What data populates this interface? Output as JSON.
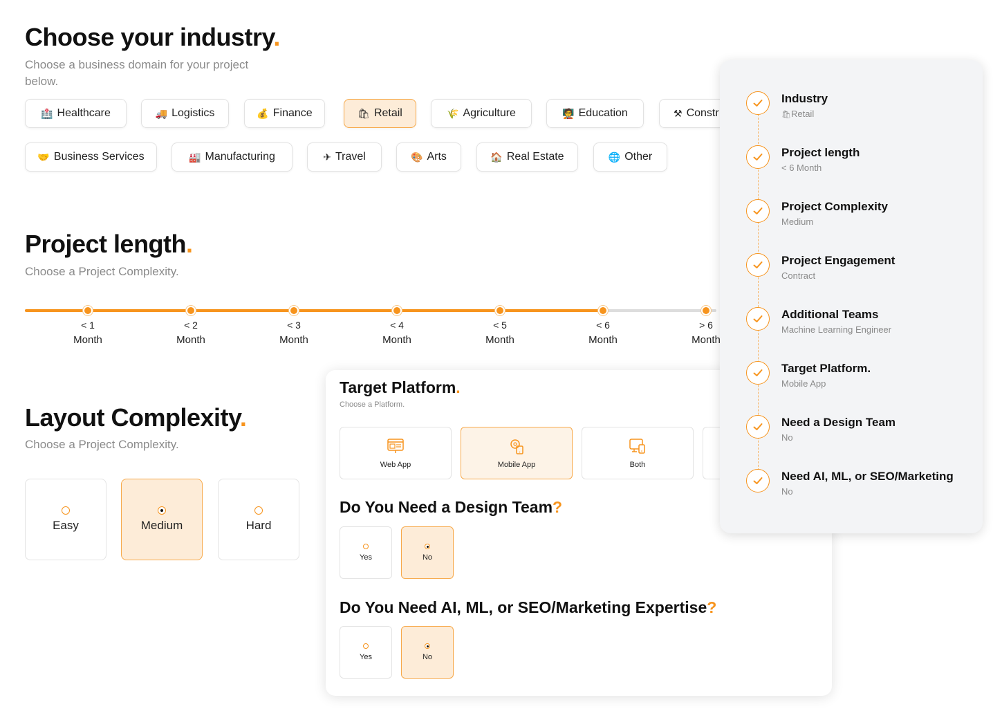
{
  "industry": {
    "title": "Choose your industry",
    "subtitle_line1": "Choose a business domain for your project",
    "subtitle_line2": "below.",
    "chips": [
      {
        "label": "Healthcare",
        "icon": "🏥",
        "icon_name": "hospital-icon"
      },
      {
        "label": "Logistics",
        "icon": "🚚",
        "icon_name": "truck-icon"
      },
      {
        "label": "Finance",
        "icon": "💰",
        "icon_name": "money-bag-icon"
      },
      {
        "label": "Retail",
        "icon": "🛍",
        "icon_name": "shopping-bags-icon",
        "selected": true
      },
      {
        "label": "Agriculture",
        "icon": "🌾",
        "icon_name": "wheat-icon"
      },
      {
        "label": "Education",
        "icon": "🧑‍🏫",
        "icon_name": "teacher-icon"
      },
      {
        "label": "Constr",
        "icon": "⚒",
        "icon_name": "tools-icon"
      },
      {
        "label": "Business Services",
        "icon": "🤝",
        "icon_name": "handshake-icon"
      },
      {
        "label": "Manufacturing",
        "icon": "🏭",
        "icon_name": "factory-icon"
      },
      {
        "label": "Travel",
        "icon": "✈",
        "icon_name": "airplane-icon"
      },
      {
        "label": "Arts",
        "icon": "🎨",
        "icon_name": "palette-icon"
      },
      {
        "label": "Real Estate",
        "icon": "🏠",
        "icon_name": "house-icon"
      },
      {
        "label": "Other",
        "icon": "🌐",
        "icon_name": "globe-icon"
      }
    ]
  },
  "project_length": {
    "title": "Project length",
    "subtitle": "Choose a Project Complexity.",
    "selected_index": 5,
    "steps": [
      {
        "top": "< 1",
        "bottom": "Month"
      },
      {
        "top": "< 2",
        "bottom": "Month"
      },
      {
        "top": "< 3",
        "bottom": "Month"
      },
      {
        "top": "< 4",
        "bottom": "Month"
      },
      {
        "top": "< 5",
        "bottom": "Month"
      },
      {
        "top": "< 6",
        "bottom": "Month"
      },
      {
        "top": "> 6",
        "bottom": "Month"
      }
    ]
  },
  "layout_complexity": {
    "title": "Layout Complexity",
    "subtitle": "Choose a Project Complexity.",
    "options": [
      {
        "label": "Easy",
        "selected": false
      },
      {
        "label": "Medium",
        "selected": true
      },
      {
        "label": "Hard",
        "selected": false
      }
    ]
  },
  "card": {
    "platform_title": "Target Platform",
    "platform_subtitle": "Choose a Platform.",
    "platforms": [
      {
        "label": "Web App",
        "icon_name": "web-app-icon",
        "selected": false
      },
      {
        "label": "Mobile App",
        "icon_name": "mobile-app-icon",
        "selected": true
      },
      {
        "label": "Both",
        "icon_name": "both-platforms-icon",
        "selected": false
      }
    ],
    "design_title": "Do You Need a Design Team",
    "design_options": [
      {
        "label": "Yes",
        "selected": false
      },
      {
        "label": "No",
        "selected": true
      }
    ],
    "ai_title": "Do You Need AI, ML, or SEO/Marketing Expertise",
    "ai_options": [
      {
        "label": "Yes",
        "selected": false
      },
      {
        "label": "No",
        "selected": true
      }
    ]
  },
  "summary": {
    "steps": [
      {
        "title": "Industry",
        "value": "Retail",
        "value_icon": "🛍"
      },
      {
        "title": "Project length",
        "value": "< 6 Month"
      },
      {
        "title": "Project Complexity",
        "value": "Medium"
      },
      {
        "title": "Project Engagement",
        "value": "Contract"
      },
      {
        "title": "Additional Teams",
        "value": "Machine Learning Engineer"
      },
      {
        "title": "Target Platform.",
        "value": "Mobile App"
      },
      {
        "title": "Need a Design Team",
        "value": "No"
      },
      {
        "title": "Need AI, ML, or SEO/Marketing",
        "value": "No"
      }
    ]
  },
  "colors": {
    "accent": "#f7941d",
    "selected_bg": "#fdecd8",
    "track_inactive": "#dddddd"
  }
}
